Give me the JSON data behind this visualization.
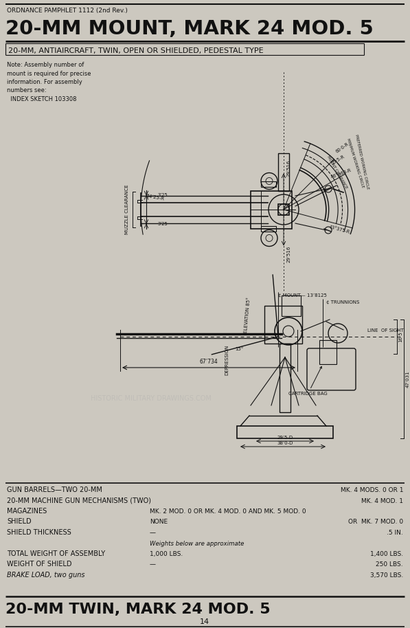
{
  "bg_color": "#ccc8bf",
  "page_width": 5.97,
  "page_height": 9.14,
  "dpi": 100,
  "header_line1": "ORDNANCE PAMPHLET 1112 (2nd Rev.)",
  "header_line2": "20-MM MOUNT, MARK 24 MOD. 5",
  "subheader": "20-MM, ANTIAIRCRAFT, TWIN, OPEN OR SHIELDED, PEDESTAL TYPE",
  "note_text": "Note: Assembly number of\nmount is required for precise\ninformation. For assembly\nnumbers see:\n  INDEX SKETCH 103308",
  "specs": [
    [
      "GUN BARRELS—TWO 20-MM",
      "",
      "MK. 4 MODS. 0 OR 1"
    ],
    [
      "20-MM MACHINE GUN MECHANISMS (TWO)",
      "",
      "MK. 4 MOD. 1"
    ],
    [
      "MAGAZINES",
      "MK. 2 MOD. 0 OR MK. 4 MOD. 0 AND MK. 5 MOD. 0",
      ""
    ],
    [
      "SHIELD",
      "NONE",
      "OR  MK. 7 MOD. 0"
    ],
    [
      "SHIELD THICKNESS",
      "—",
      ".5 IN."
    ],
    [
      "",
      "Weights below are approximate",
      ""
    ],
    [
      "TOTAL WEIGHT OF ASSEMBLY",
      "1,000 LBS.",
      "1,400 LBS."
    ],
    [
      "WEIGHT OF SHIELD",
      "—",
      "250 LBS."
    ],
    [
      "BRAKE LOAD, two guns",
      "",
      "3,570 LBS."
    ]
  ],
  "footer_title": "20-MM TWIN, MARK 24 MOD. 5",
  "page_number": "14",
  "text_color": "#111111",
  "line_color": "#111111",
  "watermark_text": "HISTORIC MILITARY DRAWINGS.COM"
}
